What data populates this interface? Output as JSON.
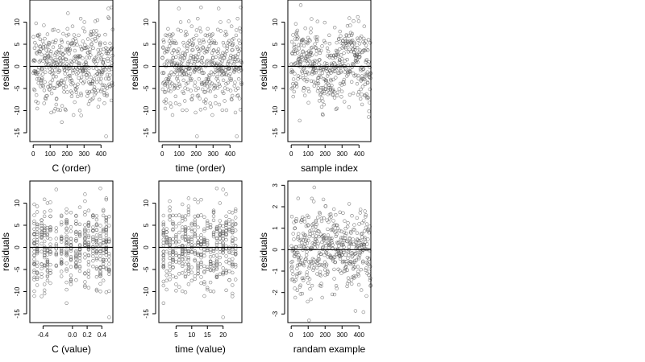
{
  "chart_data": [
    {
      "type": "scatter",
      "xlabel": "C (order)",
      "ylabel": "residuals",
      "xlim": [
        -20,
        470
      ],
      "ylim": [
        -17,
        15
      ],
      "xticks": [
        0,
        100,
        200,
        300,
        400
      ],
      "yticks": [
        -15,
        -10,
        -5,
        0,
        5,
        10
      ],
      "hline": 0,
      "n_points": 470,
      "points": "seq:0,469"
    },
    {
      "type": "scatter",
      "xlabel": "time (order)",
      "ylabel": "residuals",
      "xlim": [
        -20,
        470
      ],
      "ylim": [
        -17,
        15
      ],
      "xticks": [
        0,
        100,
        200,
        300,
        400
      ],
      "yticks": [
        -15,
        -10,
        -5,
        0,
        5,
        10
      ],
      "hline": 0,
      "n_points": 470,
      "points": "seq:0,469"
    },
    {
      "type": "scatter",
      "xlabel": "sample index",
      "ylabel": "residuals",
      "xlim": [
        -20,
        470
      ],
      "ylim": [
        -17,
        15
      ],
      "xticks": [
        0,
        100,
        200,
        300,
        400
      ],
      "yticks": [
        -15,
        -10,
        -5,
        0,
        5,
        10
      ],
      "hline": 0,
      "n_points": 470,
      "points": "seq:0,469"
    },
    {
      "type": "scatter",
      "xlabel": "C (value)",
      "ylabel": "residuals",
      "xlim": [
        -0.58,
        0.55
      ],
      "ylim": [
        -17,
        15
      ],
      "xticks": [
        -0.4,
        0.0,
        0.2,
        0.4
      ],
      "xtick_labels": [
        "-0.4",
        "0.0",
        "0.2",
        "0.4"
      ],
      "yticks": [
        -15,
        -10,
        -5,
        0,
        5,
        10
      ],
      "hline": 0,
      "x_levels": [
        -0.52,
        -0.48,
        -0.42,
        -0.38,
        -0.34,
        -0.3,
        -0.22,
        -0.15,
        -0.08,
        -0.02,
        0.05,
        0.1,
        0.17,
        0.22,
        0.28,
        0.33,
        0.38,
        0.42,
        0.46,
        0.5
      ]
    },
    {
      "type": "scatter",
      "xlabel": "time (value)",
      "ylabel": "residuals",
      "xlim": [
        -0.5,
        26
      ],
      "ylim": [
        -17,
        15
      ],
      "xticks": [
        5,
        10,
        15,
        20
      ],
      "yticks": [
        -15,
        -10,
        -5,
        0,
        5,
        10
      ],
      "hline": 0,
      "x_levels": [
        1,
        2,
        3,
        4,
        5,
        6,
        7,
        8,
        9,
        10,
        11,
        12,
        13,
        14,
        15,
        16,
        17,
        18,
        19,
        20,
        21,
        22,
        23,
        24
      ]
    },
    {
      "type": "scatter",
      "xlabel": "randam example",
      "ylabel": "residuals",
      "xlim": [
        -20,
        470
      ],
      "ylim": [
        -3.4,
        3.2
      ],
      "xticks": [
        0,
        100,
        200,
        300,
        400
      ],
      "yticks": [
        -3,
        -2,
        -1,
        0,
        1,
        2,
        3
      ],
      "hline": 0,
      "n_points": 470,
      "points": "seq:0,469"
    }
  ]
}
